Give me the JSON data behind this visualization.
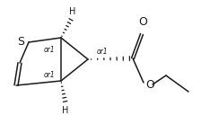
{
  "bg_color": "#ffffff",
  "line_color": "#1a1a1a",
  "text_color": "#1a1a1a",
  "figsize": [
    2.24,
    1.38
  ],
  "dpi": 100,
  "S_label": "S",
  "O_label": "O",
  "carbonyl_O_label": "O",
  "or1_labels": [
    "or1",
    "or1",
    "or1"
  ],
  "H_labels": [
    "H",
    "H"
  ],
  "lw": 1.1,
  "xlim": [
    0,
    224
  ],
  "ylim": [
    0,
    138
  ]
}
